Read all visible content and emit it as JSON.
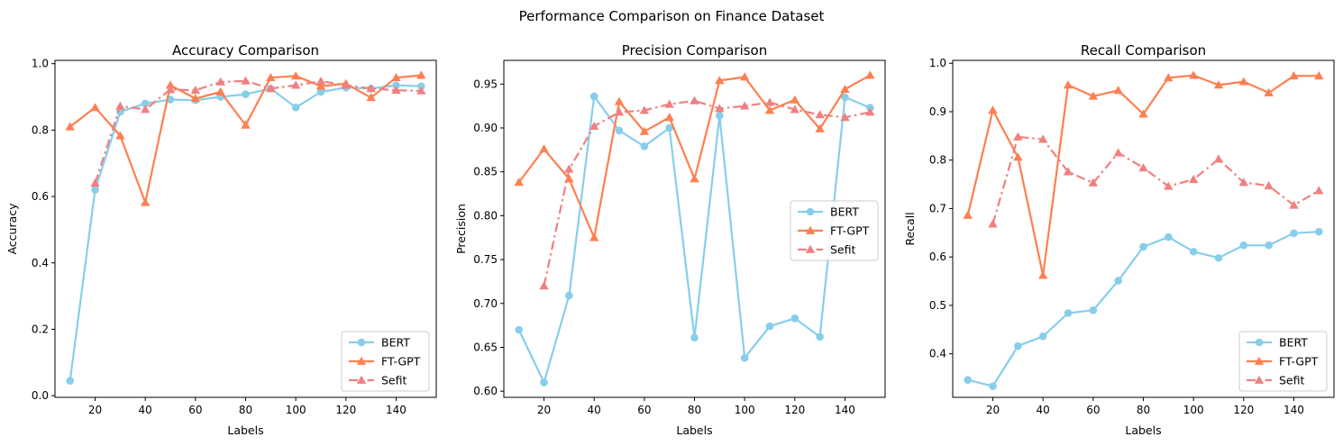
{
  "figure": {
    "title": "Performance Comparison on Finance Dataset"
  },
  "colors": {
    "BERT": "#87CEEB",
    "FT-GPT": "#FF7F50",
    "Sefit": "#F08080"
  },
  "chart_data": [
    {
      "type": "line",
      "title": "Accuracy Comparison",
      "xlabel": "Labels",
      "ylabel": "Accuracy",
      "x": [
        10,
        20,
        30,
        40,
        50,
        60,
        70,
        80,
        90,
        100,
        110,
        120,
        130,
        140,
        150
      ],
      "xlim": [
        4,
        156
      ],
      "ylim": [
        -0.005,
        1.01
      ],
      "xticks": [
        20,
        40,
        60,
        80,
        100,
        120,
        140
      ],
      "yticks": [
        0.0,
        0.2,
        0.4,
        0.6,
        0.8,
        1.0
      ],
      "yticklabels": [
        "0.0",
        "0.2",
        "0.4",
        "0.6",
        "0.8",
        "1.0"
      ],
      "legend": "lower-right",
      "grid": false,
      "series": [
        {
          "name": "BERT",
          "marker": "circle",
          "style": "solid",
          "values": [
            0.045,
            0.62,
            0.855,
            0.88,
            0.892,
            0.89,
            0.9,
            0.908,
            0.925,
            0.868,
            0.915,
            0.928,
            0.925,
            0.935,
            0.932
          ]
        },
        {
          "name": "FT-GPT",
          "marker": "triangle",
          "style": "solid",
          "values": [
            0.81,
            0.868,
            0.783,
            0.582,
            0.935,
            0.895,
            0.915,
            0.815,
            0.958,
            0.963,
            0.932,
            0.94,
            0.898,
            0.958,
            0.965
          ]
        },
        {
          "name": "Sefit",
          "marker": "triangle",
          "style": "dashdot",
          "values": [
            null,
            0.64,
            0.872,
            0.862,
            0.922,
            0.92,
            0.945,
            0.948,
            0.925,
            0.935,
            0.947,
            0.935,
            0.925,
            0.92,
            0.918
          ]
        }
      ]
    },
    {
      "type": "line",
      "title": "Precision Comparison",
      "xlabel": "Labels",
      "ylabel": "Precision",
      "x": [
        10,
        20,
        30,
        40,
        50,
        60,
        70,
        80,
        90,
        100,
        110,
        120,
        130,
        140,
        150
      ],
      "xlim": [
        4,
        156
      ],
      "ylim": [
        0.593,
        0.977
      ],
      "xticks": [
        20,
        40,
        60,
        80,
        100,
        120,
        140
      ],
      "yticks": [
        0.6,
        0.65,
        0.7,
        0.75,
        0.8,
        0.85,
        0.9,
        0.95
      ],
      "yticklabels": [
        "0.60",
        "0.65",
        "0.70",
        "0.75",
        "0.80",
        "0.85",
        "0.90",
        "0.95"
      ],
      "legend": "center-right",
      "grid": false,
      "series": [
        {
          "name": "BERT",
          "marker": "circle",
          "style": "solid",
          "values": [
            0.67,
            0.61,
            0.709,
            0.936,
            0.897,
            0.879,
            0.9,
            0.661,
            0.914,
            0.638,
            0.674,
            0.683,
            0.662,
            0.935,
            0.923
          ]
        },
        {
          "name": "FT-GPT",
          "marker": "triangle",
          "style": "solid",
          "values": [
            0.838,
            0.876,
            0.842,
            0.775,
            0.93,
            0.896,
            0.912,
            0.842,
            0.954,
            0.958,
            0.92,
            0.932,
            0.899,
            0.944,
            0.96
          ]
        },
        {
          "name": "Sefit",
          "marker": "triangle",
          "style": "dashdot",
          "values": [
            null,
            0.72,
            0.853,
            0.902,
            0.918,
            0.92,
            0.927,
            0.931,
            0.922,
            0.925,
            0.929,
            0.921,
            0.915,
            0.912,
            0.918
          ]
        }
      ]
    },
    {
      "type": "line",
      "title": "Recall Comparison",
      "xlabel": "Labels",
      "ylabel": "Recall",
      "x": [
        10,
        20,
        30,
        40,
        50,
        60,
        70,
        80,
        90,
        100,
        110,
        120,
        130,
        140,
        150
      ],
      "xlim": [
        4,
        156
      ],
      "ylim": [
        0.31,
        1.006
      ],
      "xticks": [
        20,
        40,
        60,
        80,
        100,
        120,
        140
      ],
      "yticks": [
        0.4,
        0.5,
        0.6,
        0.7,
        0.8,
        0.9,
        1.0
      ],
      "yticklabels": [
        "0.4",
        "0.5",
        "0.6",
        "0.7",
        "0.8",
        "0.9",
        "1.0"
      ],
      "legend": "lower-right",
      "grid": false,
      "series": [
        {
          "name": "BERT",
          "marker": "circle",
          "style": "solid",
          "values": [
            0.346,
            0.333,
            0.416,
            0.436,
            0.484,
            0.49,
            0.551,
            0.621,
            0.641,
            0.611,
            0.598,
            0.624,
            0.624,
            0.649,
            0.652
          ]
        },
        {
          "name": "FT-GPT",
          "marker": "triangle",
          "style": "solid",
          "values": [
            0.686,
            0.903,
            0.806,
            0.562,
            0.955,
            0.932,
            0.944,
            0.895,
            0.97,
            0.975,
            0.955,
            0.962,
            0.939,
            0.974,
            0.974
          ]
        },
        {
          "name": "Sefit",
          "marker": "triangle",
          "style": "dashdot",
          "values": [
            null,
            0.668,
            0.848,
            0.843,
            0.776,
            0.753,
            0.815,
            0.784,
            0.746,
            0.76,
            0.802,
            0.754,
            0.747,
            0.707,
            0.737
          ]
        }
      ]
    }
  ]
}
